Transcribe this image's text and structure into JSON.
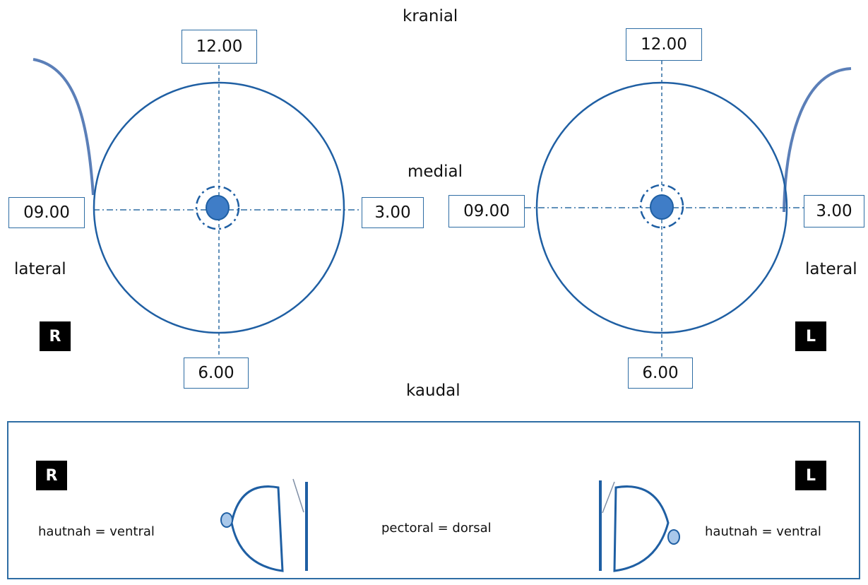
{
  "orientation": {
    "top": "kranial",
    "middle": "medial",
    "bottom": "kaudal",
    "left_side": "lateral",
    "right_side": "lateral"
  },
  "right_breast": {
    "side_badge": "R",
    "clock_12": "12.00",
    "clock_3": "3.00",
    "clock_6": "6.00",
    "clock_9": "09.00"
  },
  "left_breast": {
    "side_badge": "L",
    "clock_12": "12.00",
    "clock_3": "3.00",
    "clock_6": "6.00",
    "clock_9": "09.00"
  },
  "profile_panel": {
    "right_badge": "R",
    "left_badge": "L",
    "right_label": "hautnah = ventral",
    "center_label": "pectoral = dorsal",
    "left_label": "hautnah  = ventral"
  },
  "colors": {
    "outline": "#1f5fa3",
    "nipple": "#3f7dc7",
    "axis": "#2e6da4",
    "curve": "#5b7fb8",
    "badge_bg": "#000000"
  }
}
